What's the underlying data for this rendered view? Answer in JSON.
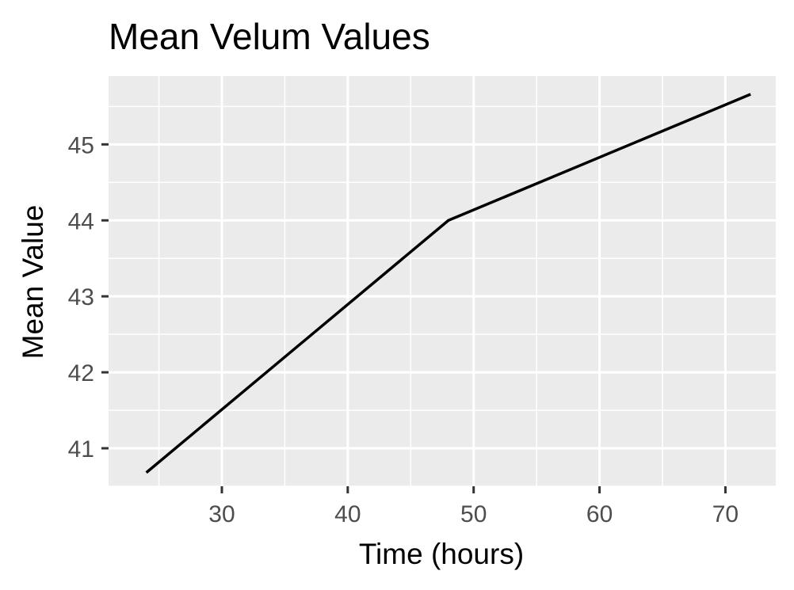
{
  "chart_data": {
    "type": "line",
    "title": "Mean Velum Values",
    "xlabel": "Time (hours)",
    "ylabel": "Mean Value",
    "x": [
      24,
      48,
      72
    ],
    "series": [
      {
        "values": [
          40.68,
          44.0,
          45.66
        ]
      }
    ],
    "xlim": [
      21,
      74
    ],
    "ylim": [
      40.5,
      45.9
    ],
    "xticks": [
      30,
      40,
      50,
      60,
      70
    ],
    "yticks": [
      41,
      42,
      43,
      44,
      45
    ],
    "xtick_labels": [
      "30",
      "40",
      "50",
      "60",
      "70"
    ],
    "ytick_labels": [
      "41",
      "42",
      "43",
      "44",
      "45"
    ],
    "grid": true,
    "legend": "none",
    "colors": {
      "panel_background": "#ebebeb",
      "grid": "#ffffff",
      "line": "#000000",
      "tick_text": "#4d4d4d",
      "tick_mark": "#333333"
    }
  }
}
